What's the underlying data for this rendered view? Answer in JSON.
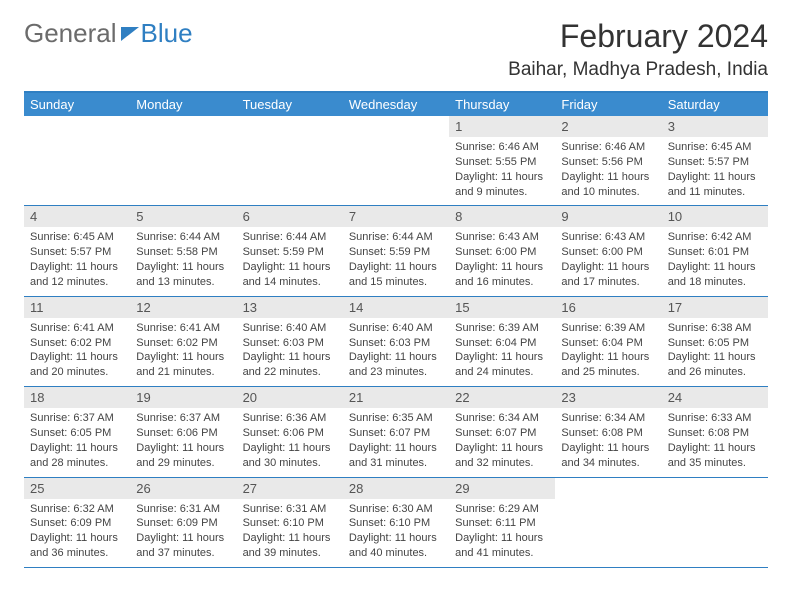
{
  "brand": {
    "word1": "General",
    "word2": "Blue"
  },
  "title": "February 2024",
  "location": "Baihar, Madhya Pradesh, India",
  "colors": {
    "header_bg": "#3a8bce",
    "rule": "#2f7fc2",
    "daynum_bg": "#e9e9e9",
    "text": "#333333",
    "body_text": "#444444"
  },
  "day_headers": [
    "Sunday",
    "Monday",
    "Tuesday",
    "Wednesday",
    "Thursday",
    "Friday",
    "Saturday"
  ],
  "first_weekday_index": 4,
  "days": [
    {
      "n": 1,
      "sunrise": "6:46 AM",
      "sunset": "5:55 PM",
      "daylight": "11 hours and 9 minutes."
    },
    {
      "n": 2,
      "sunrise": "6:46 AM",
      "sunset": "5:56 PM",
      "daylight": "11 hours and 10 minutes."
    },
    {
      "n": 3,
      "sunrise": "6:45 AM",
      "sunset": "5:57 PM",
      "daylight": "11 hours and 11 minutes."
    },
    {
      "n": 4,
      "sunrise": "6:45 AM",
      "sunset": "5:57 PM",
      "daylight": "11 hours and 12 minutes."
    },
    {
      "n": 5,
      "sunrise": "6:44 AM",
      "sunset": "5:58 PM",
      "daylight": "11 hours and 13 minutes."
    },
    {
      "n": 6,
      "sunrise": "6:44 AM",
      "sunset": "5:59 PM",
      "daylight": "11 hours and 14 minutes."
    },
    {
      "n": 7,
      "sunrise": "6:44 AM",
      "sunset": "5:59 PM",
      "daylight": "11 hours and 15 minutes."
    },
    {
      "n": 8,
      "sunrise": "6:43 AM",
      "sunset": "6:00 PM",
      "daylight": "11 hours and 16 minutes."
    },
    {
      "n": 9,
      "sunrise": "6:43 AM",
      "sunset": "6:00 PM",
      "daylight": "11 hours and 17 minutes."
    },
    {
      "n": 10,
      "sunrise": "6:42 AM",
      "sunset": "6:01 PM",
      "daylight": "11 hours and 18 minutes."
    },
    {
      "n": 11,
      "sunrise": "6:41 AM",
      "sunset": "6:02 PM",
      "daylight": "11 hours and 20 minutes."
    },
    {
      "n": 12,
      "sunrise": "6:41 AM",
      "sunset": "6:02 PM",
      "daylight": "11 hours and 21 minutes."
    },
    {
      "n": 13,
      "sunrise": "6:40 AM",
      "sunset": "6:03 PM",
      "daylight": "11 hours and 22 minutes."
    },
    {
      "n": 14,
      "sunrise": "6:40 AM",
      "sunset": "6:03 PM",
      "daylight": "11 hours and 23 minutes."
    },
    {
      "n": 15,
      "sunrise": "6:39 AM",
      "sunset": "6:04 PM",
      "daylight": "11 hours and 24 minutes."
    },
    {
      "n": 16,
      "sunrise": "6:39 AM",
      "sunset": "6:04 PM",
      "daylight": "11 hours and 25 minutes."
    },
    {
      "n": 17,
      "sunrise": "6:38 AM",
      "sunset": "6:05 PM",
      "daylight": "11 hours and 26 minutes."
    },
    {
      "n": 18,
      "sunrise": "6:37 AM",
      "sunset": "6:05 PM",
      "daylight": "11 hours and 28 minutes."
    },
    {
      "n": 19,
      "sunrise": "6:37 AM",
      "sunset": "6:06 PM",
      "daylight": "11 hours and 29 minutes."
    },
    {
      "n": 20,
      "sunrise": "6:36 AM",
      "sunset": "6:06 PM",
      "daylight": "11 hours and 30 minutes."
    },
    {
      "n": 21,
      "sunrise": "6:35 AM",
      "sunset": "6:07 PM",
      "daylight": "11 hours and 31 minutes."
    },
    {
      "n": 22,
      "sunrise": "6:34 AM",
      "sunset": "6:07 PM",
      "daylight": "11 hours and 32 minutes."
    },
    {
      "n": 23,
      "sunrise": "6:34 AM",
      "sunset": "6:08 PM",
      "daylight": "11 hours and 34 minutes."
    },
    {
      "n": 24,
      "sunrise": "6:33 AM",
      "sunset": "6:08 PM",
      "daylight": "11 hours and 35 minutes."
    },
    {
      "n": 25,
      "sunrise": "6:32 AM",
      "sunset": "6:09 PM",
      "daylight": "11 hours and 36 minutes."
    },
    {
      "n": 26,
      "sunrise": "6:31 AM",
      "sunset": "6:09 PM",
      "daylight": "11 hours and 37 minutes."
    },
    {
      "n": 27,
      "sunrise": "6:31 AM",
      "sunset": "6:10 PM",
      "daylight": "11 hours and 39 minutes."
    },
    {
      "n": 28,
      "sunrise": "6:30 AM",
      "sunset": "6:10 PM",
      "daylight": "11 hours and 40 minutes."
    },
    {
      "n": 29,
      "sunrise": "6:29 AM",
      "sunset": "6:11 PM",
      "daylight": "11 hours and 41 minutes."
    }
  ],
  "labels": {
    "sunrise": "Sunrise:",
    "sunset": "Sunset:",
    "daylight": "Daylight:"
  }
}
